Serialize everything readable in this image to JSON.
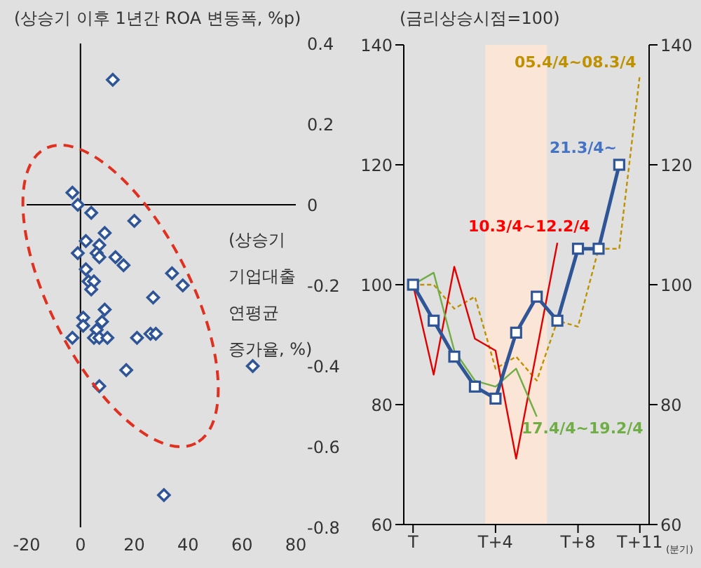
{
  "chart_data": [
    {
      "type": "scatter",
      "title": "(상승기 이후 1년간 ROA 변동폭, %p)",
      "xlabel": "(상승기\n기업대출\n연평균\n증가율, %)",
      "x": [
        12,
        -3,
        -1,
        4,
        20,
        9,
        2,
        7,
        -1,
        6,
        7,
        13,
        16,
        2,
        34,
        38,
        3,
        5,
        4,
        27,
        9,
        1,
        8,
        1,
        6,
        -3,
        5,
        7,
        10,
        21,
        26,
        28,
        64,
        17,
        7,
        31
      ],
      "series": [
        {
          "color": "#2f5597",
          "values": [
            0.31,
            0.03,
            0.0,
            -0.02,
            -0.04,
            -0.07,
            -0.09,
            -0.1,
            -0.12,
            -0.12,
            -0.13,
            -0.13,
            -0.15,
            -0.16,
            -0.17,
            -0.2,
            -0.19,
            -0.19,
            -0.21,
            -0.23,
            -0.26,
            -0.28,
            -0.29,
            -0.3,
            -0.31,
            -0.33,
            -0.33,
            -0.33,
            -0.33,
            -0.33,
            -0.32,
            -0.32,
            -0.4,
            -0.41,
            -0.45,
            -0.72
          ]
        }
      ],
      "marker": "diamond",
      "xlim": [
        -20,
        80
      ],
      "xticks": [
        -20,
        0,
        20,
        40,
        60,
        80
      ],
      "ylim": [
        -0.8,
        0.4
      ],
      "yticks": [
        -0.8,
        -0.6,
        -0.4,
        -0.2,
        0,
        0.2,
        0.4
      ]
    },
    {
      "type": "line",
      "title": "(금리상승시점=100)",
      "xlabel": "(분기)",
      "series": [
        {
          "name": "05.4/4~08.3/4",
          "color": "#bf9000",
          "line_style": "dashed",
          "marker": "none",
          "values": [
            100,
            100,
            96,
            98,
            86,
            88,
            84,
            94,
            93,
            106,
            106,
            135
          ]
        },
        {
          "name": "10.3/4~12.2/4",
          "color": "#e00000",
          "line_style": "solid",
          "marker": "none",
          "values": [
            100,
            85,
            103,
            91,
            89,
            71,
            89,
            107,
            null,
            null,
            null,
            null
          ]
        },
        {
          "name": "17.4/4~19.2/4",
          "color": "#70ad47",
          "line_style": "solid",
          "marker": "none",
          "values": [
            100,
            102,
            89,
            84,
            83,
            86,
            78,
            null,
            null,
            null,
            null,
            null
          ]
        },
        {
          "name": "21.3/4~",
          "color": "#2f5597",
          "line_style": "solid",
          "marker": "square",
          "values": [
            100,
            94,
            88,
            83,
            81,
            92,
            98,
            94,
            106,
            106,
            120,
            null
          ]
        }
      ],
      "categories": [
        "T",
        null,
        null,
        null,
        "T+4",
        null,
        null,
        null,
        "T+8",
        null,
        null,
        "T+11"
      ],
      "ylim": [
        60,
        140
      ],
      "yticks": [
        60,
        80,
        100,
        120,
        140
      ],
      "y2lim": [
        60,
        140
      ],
      "y2ticks": [
        60,
        80,
        100,
        120,
        140
      ]
    }
  ]
}
